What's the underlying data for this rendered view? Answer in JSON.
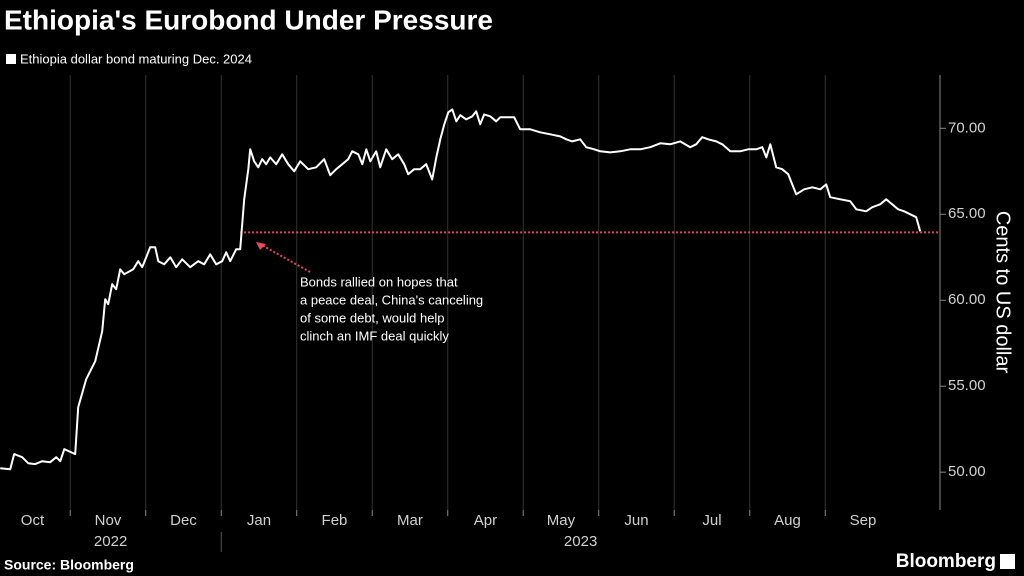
{
  "chart_data": {
    "type": "line",
    "title": "Ethiopia's Eurobond Under Pressure",
    "y_label": "Cents to US dollar",
    "source": "Source: Bloomberg",
    "logo": "Bloomberg",
    "annotation": [
      "Bonds rallied on hopes that",
      "a peace deal, China's canceling",
      "of some debt, would help",
      "clinch an IMF deal quickly"
    ],
    "reference_line": {
      "value": 63.95,
      "start": 3.25,
      "color": "#e8485a"
    },
    "grid": true,
    "xlim": [
      0.07,
      12.52
    ],
    "ylim": [
      47.8,
      73.1
    ],
    "xticks": [
      {
        "value": 0,
        "label": "Oct"
      },
      {
        "value": 1,
        "label": "Nov"
      },
      {
        "value": 2,
        "label": "Dec"
      },
      {
        "value": 3,
        "label": "Jan"
      },
      {
        "value": 4,
        "label": "Feb"
      },
      {
        "value": 5,
        "label": "Mar"
      },
      {
        "value": 6,
        "label": "Apr"
      },
      {
        "value": 7,
        "label": "May"
      },
      {
        "value": 8,
        "label": "Jun"
      },
      {
        "value": 9,
        "label": "Jul"
      },
      {
        "value": 10,
        "label": "Aug"
      },
      {
        "value": 11,
        "label": "Sep"
      }
    ],
    "x_groups": [
      {
        "label": "2022",
        "start": 0,
        "end": 3
      },
      {
        "label": "2023",
        "start": 3,
        "end": 12.52
      }
    ],
    "yticks": [
      {
        "value": 50,
        "label": "50.00"
      },
      {
        "value": 55,
        "label": "55.00"
      },
      {
        "value": 60,
        "label": "60.00"
      },
      {
        "value": 65,
        "label": "65.00"
      },
      {
        "value": 70,
        "label": "70.00"
      }
    ],
    "x": [
      0.073,
      0.205,
      0.258,
      0.364,
      0.444,
      0.536,
      0.629,
      0.735,
      0.815,
      0.868,
      0.921,
      1.066,
      1.106,
      1.212,
      1.331,
      1.424,
      1.464,
      1.503,
      1.556,
      1.609,
      1.662,
      1.715,
      1.834,
      1.901,
      1.954,
      2.06,
      2.126,
      2.166,
      2.245,
      2.325,
      2.404,
      2.483,
      2.589,
      2.695,
      2.775,
      2.854,
      2.934,
      3.013,
      3.066,
      3.119,
      3.199,
      3.252,
      3.305,
      3.358,
      3.384,
      3.437,
      3.49,
      3.543,
      3.596,
      3.649,
      3.728,
      3.808,
      3.887,
      3.967,
      4.046,
      4.152,
      4.258,
      4.364,
      4.444,
      4.523,
      4.603,
      4.682,
      4.735,
      4.815,
      4.868,
      4.921,
      4.974,
      5.053,
      5.106,
      5.185,
      5.265,
      5.344,
      5.424,
      5.477,
      5.556,
      5.636,
      5.715,
      5.795,
      5.848,
      5.901,
      5.954,
      6.007,
      6.06,
      6.113,
      6.166,
      6.245,
      6.325,
      6.377,
      6.43,
      6.483,
      6.563,
      6.642,
      6.695,
      6.881,
      6.96,
      7.093,
      7.225,
      7.358,
      7.49,
      7.57,
      7.649,
      7.755,
      7.834,
      7.94,
      8.02,
      8.152,
      8.285,
      8.417,
      8.55,
      8.682,
      8.815,
      8.947,
      9.079,
      9.212,
      9.291,
      9.371,
      9.45,
      9.556,
      9.636,
      9.742,
      9.874,
      9.98,
      10.086,
      10.166,
      10.219,
      10.272,
      10.351,
      10.43,
      10.51,
      10.616,
      10.722,
      10.828,
      10.934,
      11.013,
      11.066,
      11.199,
      11.331,
      11.411,
      11.543,
      11.623,
      11.728,
      11.808,
      11.887,
      11.967,
      12.046,
      12.126,
      12.205,
      12.258
    ],
    "series": [
      {
        "name": "Ethiopia dollar bond maturing Dec. 2024",
        "color": "#ffffff",
        "values": [
          50.23,
          50.17,
          51.05,
          50.87,
          50.52,
          50.47,
          50.64,
          50.58,
          50.87,
          50.64,
          51.34,
          51.05,
          53.78,
          55.41,
          56.45,
          58.2,
          60.06,
          59.77,
          60.93,
          60.64,
          61.8,
          61.51,
          61.8,
          62.27,
          61.92,
          63.08,
          63.08,
          62.27,
          62.09,
          62.5,
          61.92,
          62.38,
          61.92,
          62.27,
          62.09,
          62.67,
          62.09,
          62.27,
          62.79,
          62.27,
          62.97,
          62.97,
          65.87,
          67.62,
          68.78,
          68.08,
          67.73,
          68.2,
          67.91,
          68.31,
          67.91,
          68.49,
          67.91,
          67.5,
          68.08,
          67.62,
          67.73,
          68.2,
          67.27,
          67.62,
          67.91,
          68.2,
          68.66,
          68.49,
          67.91,
          68.78,
          68.08,
          68.66,
          67.73,
          68.78,
          68.2,
          68.49,
          67.91,
          67.33,
          67.62,
          67.62,
          67.91,
          67.03,
          68.31,
          69.36,
          70.23,
          70.93,
          71.1,
          70.41,
          70.76,
          70.52,
          70.7,
          70.99,
          70.23,
          70.81,
          70.7,
          70.41,
          70.64,
          70.64,
          69.94,
          69.94,
          69.77,
          69.65,
          69.53,
          69.36,
          69.24,
          69.36,
          68.9,
          68.78,
          68.66,
          68.6,
          68.66,
          68.78,
          68.78,
          68.9,
          69.13,
          69.07,
          69.24,
          68.9,
          69.07,
          69.48,
          69.36,
          69.24,
          69.07,
          68.66,
          68.66,
          68.78,
          68.78,
          68.9,
          68.31,
          69.07,
          67.73,
          67.62,
          67.33,
          66.16,
          66.45,
          66.57,
          66.45,
          66.74,
          65.99,
          65.87,
          65.76,
          65.29,
          65.17,
          65.41,
          65.58,
          65.87,
          65.58,
          65.29,
          65.17,
          65.0,
          64.83,
          64.01
        ]
      }
    ]
  }
}
